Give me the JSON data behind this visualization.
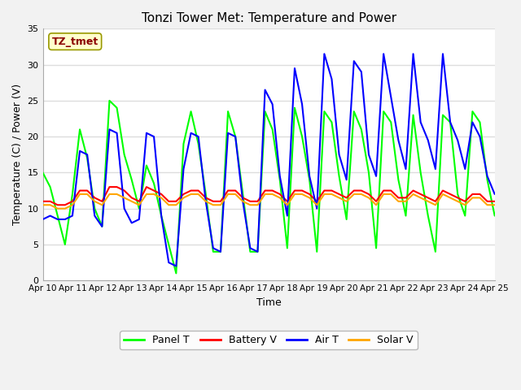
{
  "title": "Tonzi Tower Met: Temperature and Power",
  "xlabel": "Time",
  "ylabel": "Temperature (C) / Power (V)",
  "annotation": "TZ_tmet",
  "ylim": [
    0,
    35
  ],
  "xlim": [
    0,
    15
  ],
  "xtick_labels": [
    "Apr 10",
    "Apr 11",
    "Apr 12",
    "Apr 13",
    "Apr 14",
    "Apr 15",
    "Apr 16",
    "Apr 17",
    "Apr 18",
    "Apr 19",
    "Apr 20",
    "Apr 21",
    "Apr 22",
    "Apr 23",
    "Apr 24",
    "Apr 25"
  ],
  "colors": {
    "panel_t": "#00FF00",
    "battery_v": "#FF0000",
    "air_t": "#0000FF",
    "solar_v": "#FFA500"
  },
  "legend_labels": [
    "Panel T",
    "Battery V",
    "Air T",
    "Solar V"
  ],
  "figure_bg": "#F2F2F2",
  "plot_bg": "#FFFFFF",
  "grid_color": "#DDDDDD",
  "annotation_bg": "#FFFFCC",
  "annotation_fg": "#8B0000",
  "annotation_border": "#999900",
  "panel_t": [
    15.0,
    13.0,
    9.0,
    5.0,
    12.0,
    21.0,
    17.0,
    10.0,
    7.5,
    25.0,
    24.0,
    17.5,
    14.0,
    10.0,
    16.0,
    13.5,
    9.0,
    5.0,
    1.0,
    19.0,
    23.5,
    19.0,
    12.0,
    4.0,
    4.0,
    23.5,
    20.0,
    12.0,
    4.0,
    4.0,
    23.5,
    21.0,
    14.0,
    4.5,
    24.0,
    20.0,
    14.0,
    4.0,
    23.5,
    22.0,
    14.5,
    8.5,
    23.5,
    21.0,
    15.0,
    4.5,
    23.5,
    22.0,
    14.0,
    9.0,
    23.0,
    15.0,
    9.0,
    4.0,
    23.0,
    22.0,
    12.0,
    9.0,
    23.5,
    22.0,
    14.0,
    9.0
  ],
  "battery_v": [
    11.0,
    11.0,
    10.5,
    10.5,
    11.0,
    12.5,
    12.5,
    11.5,
    11.0,
    13.0,
    13.0,
    12.5,
    11.5,
    11.0,
    13.0,
    12.5,
    12.0,
    11.0,
    11.0,
    12.0,
    12.5,
    12.5,
    11.5,
    11.0,
    11.0,
    12.5,
    12.5,
    11.5,
    11.0,
    11.0,
    12.5,
    12.5,
    12.0,
    11.0,
    12.5,
    12.5,
    12.0,
    11.0,
    12.5,
    12.5,
    12.0,
    11.5,
    12.5,
    12.5,
    12.0,
    11.0,
    12.5,
    12.5,
    11.5,
    11.5,
    12.5,
    12.0,
    11.5,
    11.0,
    12.5,
    12.0,
    11.5,
    11.0,
    12.0,
    12.0,
    11.0,
    11.0
  ],
  "air_t": [
    8.5,
    9.0,
    8.5,
    8.5,
    9.0,
    18.0,
    17.5,
    9.0,
    7.5,
    21.0,
    20.5,
    10.0,
    8.0,
    8.5,
    20.5,
    20.0,
    9.0,
    2.5,
    2.0,
    15.5,
    20.5,
    20.0,
    11.0,
    4.5,
    4.0,
    20.5,
    20.0,
    11.0,
    4.5,
    4.0,
    26.5,
    24.5,
    14.5,
    9.0,
    29.5,
    24.5,
    14.5,
    10.0,
    31.5,
    28.0,
    17.5,
    14.0,
    30.5,
    29.0,
    17.5,
    14.5,
    31.5,
    25.5,
    19.5,
    15.5,
    31.5,
    22.0,
    19.5,
    15.5,
    31.5,
    22.0,
    19.5,
    15.5,
    22.0,
    20.0,
    14.5,
    12.0
  ],
  "solar_v": [
    10.5,
    10.5,
    10.0,
    10.0,
    10.5,
    12.0,
    12.0,
    11.0,
    10.5,
    12.0,
    12.0,
    11.5,
    11.0,
    10.5,
    12.0,
    12.0,
    11.5,
    10.5,
    10.5,
    11.5,
    12.0,
    12.0,
    11.0,
    10.5,
    10.5,
    12.0,
    12.0,
    11.0,
    10.5,
    10.5,
    12.0,
    12.0,
    11.5,
    10.5,
    12.0,
    12.0,
    11.5,
    10.5,
    12.0,
    12.0,
    11.5,
    11.0,
    12.0,
    12.0,
    11.5,
    10.5,
    12.0,
    12.0,
    11.0,
    11.0,
    12.0,
    11.5,
    11.0,
    10.5,
    12.0,
    11.5,
    11.0,
    10.5,
    11.5,
    11.5,
    10.5,
    10.5
  ]
}
